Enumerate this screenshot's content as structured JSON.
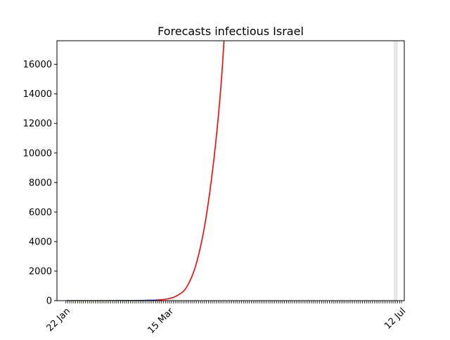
{
  "chart_data": {
    "type": "line",
    "title": "Forecasts infectious Israel",
    "xlabel": "",
    "ylabel": "",
    "x_axis": {
      "start_date": "22 Jan",
      "end_date": "12 Jul",
      "tick_labels": [
        "22 Jan",
        "15 Mar",
        "12 Jul"
      ]
    },
    "ylim": [
      0,
      17600
    ],
    "y_ticks": [
      0,
      2000,
      4000,
      6000,
      8000,
      10000,
      12000,
      14000,
      16000
    ],
    "grid": false,
    "highlight_band": {
      "from": "8 Jul",
      "to": "10 Jul",
      "color": "#e6e6e6"
    },
    "series": [
      {
        "color": "#0000ff",
        "x": [
          "22 Jan",
          "1 Feb",
          "11 Feb",
          "21 Feb",
          "1 Mar",
          "6 Mar",
          "9 Mar"
        ],
        "y": [
          0,
          0,
          0,
          2,
          10,
          25,
          42
        ]
      },
      {
        "color": "#ff0000",
        "x": [
          "9 Mar",
          "14 Mar",
          "19 Mar",
          "24 Mar",
          "29 Mar",
          "3 Apr",
          "8 Apr",
          "11 Apr",
          "12 Apr"
        ],
        "y": [
          42,
          120,
          340,
          950,
          2600,
          5800,
          11000,
          15500,
          17600
        ]
      }
    ]
  }
}
